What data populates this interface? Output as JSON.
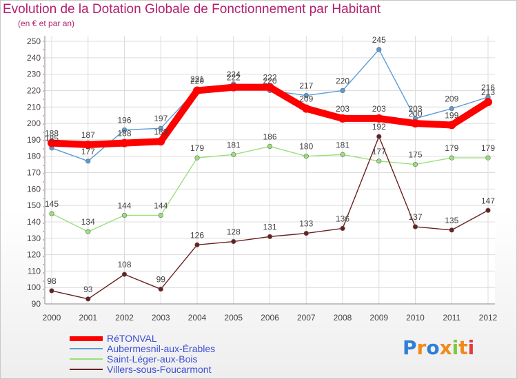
{
  "title": "Evolution de la Dotation Globale de Fonctionnement par Habitant",
  "subtitle": "(en € et par an)",
  "logo": {
    "text": "Proxiti",
    "letters": [
      "P",
      "r",
      "o",
      "x",
      "i",
      "t",
      "i"
    ],
    "colors": [
      "#2f7fd9",
      "#f08a1c",
      "#2f7fd9",
      "#f08a1c",
      "#7ac943",
      "#f08a1c",
      "#e23b3b"
    ]
  },
  "chart_data": {
    "type": "line",
    "title": "Evolution de la Dotation Globale de Fonctionnement par Habitant",
    "ylabel": "(en € et par an)",
    "xlabel": "",
    "x": [
      "2000",
      "2001",
      "2002",
      "2003",
      "2004",
      "2005",
      "2006",
      "2007",
      "2008",
      "2009",
      "2010",
      "2011",
      "2012"
    ],
    "ylim": [
      90,
      250
    ],
    "yticks": [
      90,
      100,
      110,
      120,
      130,
      140,
      150,
      160,
      170,
      180,
      190,
      200,
      210,
      220,
      230,
      240,
      250
    ],
    "grid": true,
    "series": [
      {
        "name": "RéTONVAL",
        "color": "#ff0000",
        "role": "main",
        "values": [
          188,
          187,
          188,
          189,
          220,
          222,
          222,
          209,
          203,
          203,
          200,
          199,
          213
        ]
      },
      {
        "name": "Aubermesnil-aux-Érables",
        "color": "#5b9bd5",
        "role": "thin",
        "values": [
          185,
          177,
          196,
          197,
          221,
          224,
          220,
          217,
          220,
          245,
          203,
          209,
          216
        ]
      },
      {
        "name": "Saint-Léger-aux-Bois",
        "color": "#99e07a",
        "role": "thin",
        "values": [
          145,
          134,
          144,
          144,
          179,
          181,
          186,
          180,
          181,
          177,
          175,
          179,
          179
        ]
      },
      {
        "name": "Villers-sous-Foucarmont",
        "color": "#6b1f1f",
        "role": "thin",
        "values": [
          98,
          93,
          108,
          99,
          126,
          128,
          131,
          133,
          136,
          192,
          137,
          135,
          147
        ]
      }
    ]
  }
}
